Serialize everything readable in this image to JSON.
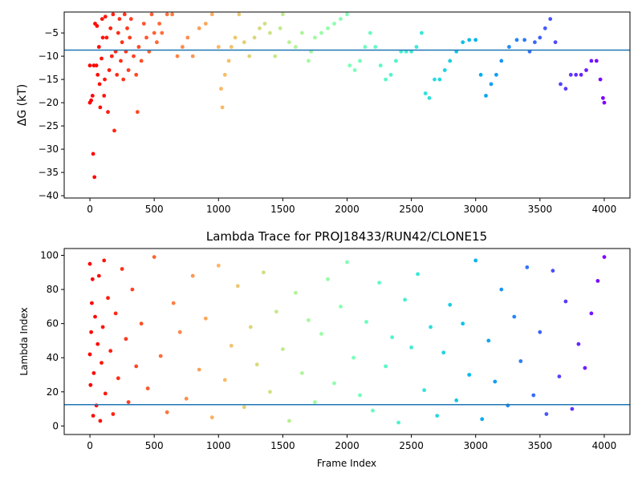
{
  "chart_data": [
    {
      "type": "scatter",
      "title": "",
      "xlabel": "",
      "ylabel": "ΔG (kT)",
      "xlim": [
        -200,
        4200
      ],
      "ylim": [
        -40.5,
        -0.5
      ],
      "xticks": [
        0,
        500,
        1000,
        1500,
        2000,
        2500,
        3000,
        3500,
        4000
      ],
      "yticks": [
        -40,
        -35,
        -30,
        -25,
        -20,
        -15,
        -10,
        -5
      ],
      "hline": -8.7,
      "hline_color": "#1f77b4",
      "colormap": "rainbow (red at frame 0 to violet at frame 4000)",
      "grid": false,
      "legend": "none",
      "frames": 4000,
      "points": [
        [
          0,
          -12
        ],
        [
          0,
          -20
        ],
        [
          10,
          -19.5
        ],
        [
          20,
          -18.5
        ],
        [
          25,
          -31
        ],
        [
          30,
          -12
        ],
        [
          35,
          -36
        ],
        [
          40,
          -3
        ],
        [
          50,
          -12
        ],
        [
          55,
          -3.5
        ],
        [
          60,
          -14
        ],
        [
          70,
          -8
        ],
        [
          75,
          -16
        ],
        [
          80,
          -21
        ],
        [
          90,
          -10.5
        ],
        [
          95,
          -2
        ],
        [
          100,
          -6
        ],
        [
          110,
          -18.5
        ],
        [
          115,
          -15
        ],
        [
          120,
          -1.5
        ],
        [
          130,
          -6
        ],
        [
          140,
          -22
        ],
        [
          150,
          -13
        ],
        [
          160,
          -4
        ],
        [
          170,
          -10
        ],
        [
          180,
          -1
        ],
        [
          190,
          -26
        ],
        [
          200,
          -9
        ],
        [
          210,
          -14
        ],
        [
          220,
          -5
        ],
        [
          230,
          -2
        ],
        [
          240,
          -11
        ],
        [
          250,
          -7
        ],
        [
          260,
          -15
        ],
        [
          270,
          -1
        ],
        [
          280,
          -9
        ],
        [
          290,
          -4
        ],
        [
          300,
          -13
        ],
        [
          310,
          -6
        ],
        [
          320,
          -2
        ],
        [
          340,
          -10
        ],
        [
          360,
          -14
        ],
        [
          370,
          -22
        ],
        [
          380,
          -8
        ],
        [
          400,
          -11
        ],
        [
          420,
          -3
        ],
        [
          440,
          -6
        ],
        [
          460,
          -9
        ],
        [
          480,
          -1
        ],
        [
          500,
          -5
        ],
        [
          520,
          -7
        ],
        [
          540,
          -3
        ],
        [
          560,
          -5
        ],
        [
          600,
          -1
        ],
        [
          640,
          -1
        ],
        [
          680,
          -10
        ],
        [
          720,
          -8
        ],
        [
          760,
          -6
        ],
        [
          800,
          -10
        ],
        [
          850,
          -4
        ],
        [
          900,
          -3
        ],
        [
          950,
          -1
        ],
        [
          1000,
          -8
        ],
        [
          1020,
          -17
        ],
        [
          1030,
          -21
        ],
        [
          1050,
          -14
        ],
        [
          1080,
          -11
        ],
        [
          1100,
          -8
        ],
        [
          1130,
          -6
        ],
        [
          1160,
          -1
        ],
        [
          1200,
          -7
        ],
        [
          1240,
          -10
        ],
        [
          1280,
          -6
        ],
        [
          1320,
          -4
        ],
        [
          1360,
          -3
        ],
        [
          1400,
          -5
        ],
        [
          1440,
          -10
        ],
        [
          1480,
          -4
        ],
        [
          1500,
          -1
        ],
        [
          1550,
          -7
        ],
        [
          1600,
          -8
        ],
        [
          1650,
          -5
        ],
        [
          1700,
          -11
        ],
        [
          1720,
          -9
        ],
        [
          1750,
          -6
        ],
        [
          1800,
          -5
        ],
        [
          1850,
          -4
        ],
        [
          1900,
          -3
        ],
        [
          1950,
          -2
        ],
        [
          2000,
          -1
        ],
        [
          2020,
          -12
        ],
        [
          2060,
          -13
        ],
        [
          2100,
          -11
        ],
        [
          2140,
          -8
        ],
        [
          2180,
          -5
        ],
        [
          2220,
          -8
        ],
        [
          2260,
          -12
        ],
        [
          2300,
          -15
        ],
        [
          2340,
          -14
        ],
        [
          2380,
          -11
        ],
        [
          2420,
          -9
        ],
        [
          2460,
          -9
        ],
        [
          2500,
          -9
        ],
        [
          2540,
          -8
        ],
        [
          2580,
          -5
        ],
        [
          2610,
          -18
        ],
        [
          2640,
          -19
        ],
        [
          2680,
          -15
        ],
        [
          2720,
          -15
        ],
        [
          2760,
          -13
        ],
        [
          2800,
          -11
        ],
        [
          2850,
          -9
        ],
        [
          2900,
          -7
        ],
        [
          2950,
          -6.5
        ],
        [
          3000,
          -6.5
        ],
        [
          3040,
          -14
        ],
        [
          3080,
          -18.5
        ],
        [
          3120,
          -16
        ],
        [
          3160,
          -14
        ],
        [
          3200,
          -11
        ],
        [
          3260,
          -8
        ],
        [
          3320,
          -6.5
        ],
        [
          3380,
          -6.5
        ],
        [
          3420,
          -9
        ],
        [
          3460,
          -7
        ],
        [
          3500,
          -6
        ],
        [
          3540,
          -4
        ],
        [
          3580,
          -2
        ],
        [
          3620,
          -7
        ],
        [
          3660,
          -16
        ],
        [
          3700,
          -17
        ],
        [
          3740,
          -14
        ],
        [
          3780,
          -14
        ],
        [
          3820,
          -14
        ],
        [
          3860,
          -13
        ],
        [
          3900,
          -11
        ],
        [
          3940,
          -11
        ],
        [
          3970,
          -15
        ],
        [
          3990,
          -19
        ],
        [
          4000,
          -20
        ]
      ]
    },
    {
      "type": "scatter",
      "title": "Lambda Trace for PROJ18433/RUN42/CLONE15",
      "xlabel": "Frame Index",
      "ylabel": "Lambda Index",
      "xlim": [
        -200,
        4200
      ],
      "ylim": [
        -5,
        104
      ],
      "xticks": [
        0,
        500,
        1000,
        1500,
        2000,
        2500,
        3000,
        3500,
        4000
      ],
      "yticks": [
        0,
        20,
        40,
        60,
        80,
        100
      ],
      "hline": 12.5,
      "hline_color": "#1f77b4",
      "colormap": "rainbow (red at frame 0 to violet at frame 4000)",
      "grid": false,
      "legend": "none",
      "frames": 4000,
      "points": [
        [
          0,
          95
        ],
        [
          0,
          42
        ],
        [
          5,
          24
        ],
        [
          10,
          55
        ],
        [
          15,
          72
        ],
        [
          20,
          86
        ],
        [
          25,
          6
        ],
        [
          30,
          31
        ],
        [
          40,
          64
        ],
        [
          50,
          12
        ],
        [
          60,
          48
        ],
        [
          70,
          88
        ],
        [
          80,
          3
        ],
        [
          90,
          37
        ],
        [
          100,
          58
        ],
        [
          110,
          97
        ],
        [
          120,
          19
        ],
        [
          140,
          75
        ],
        [
          160,
          44
        ],
        [
          180,
          7
        ],
        [
          200,
          66
        ],
        [
          220,
          28
        ],
        [
          250,
          92
        ],
        [
          280,
          51
        ],
        [
          300,
          14
        ],
        [
          330,
          80
        ],
        [
          360,
          35
        ],
        [
          400,
          60
        ],
        [
          450,
          22
        ],
        [
          500,
          99
        ],
        [
          550,
          41
        ],
        [
          600,
          8
        ],
        [
          650,
          72
        ],
        [
          700,
          55
        ],
        [
          750,
          16
        ],
        [
          800,
          88
        ],
        [
          850,
          33
        ],
        [
          900,
          63
        ],
        [
          950,
          5
        ],
        [
          1000,
          94
        ],
        [
          1050,
          27
        ],
        [
          1100,
          47
        ],
        [
          1150,
          82
        ],
        [
          1200,
          11
        ],
        [
          1250,
          58
        ],
        [
          1300,
          36
        ],
        [
          1350,
          90
        ],
        [
          1400,
          20
        ],
        [
          1450,
          67
        ],
        [
          1500,
          45
        ],
        [
          1550,
          3
        ],
        [
          1600,
          78
        ],
        [
          1650,
          31
        ],
        [
          1700,
          62
        ],
        [
          1750,
          14
        ],
        [
          1800,
          54
        ],
        [
          1850,
          86
        ],
        [
          1900,
          25
        ],
        [
          1950,
          70
        ],
        [
          2000,
          96
        ],
        [
          2050,
          40
        ],
        [
          2100,
          18
        ],
        [
          2150,
          61
        ],
        [
          2200,
          9
        ],
        [
          2250,
          84
        ],
        [
          2300,
          35
        ],
        [
          2350,
          52
        ],
        [
          2400,
          2
        ],
        [
          2450,
          74
        ],
        [
          2500,
          46
        ],
        [
          2550,
          89
        ],
        [
          2600,
          21
        ],
        [
          2650,
          58
        ],
        [
          2700,
          6
        ],
        [
          2750,
          43
        ],
        [
          2800,
          71
        ],
        [
          2850,
          15
        ],
        [
          2900,
          60
        ],
        [
          2950,
          30
        ],
        [
          3000,
          97
        ],
        [
          3050,
          4
        ],
        [
          3100,
          50
        ],
        [
          3150,
          26
        ],
        [
          3200,
          80
        ],
        [
          3250,
          12
        ],
        [
          3300,
          64
        ],
        [
          3350,
          38
        ],
        [
          3400,
          93
        ],
        [
          3450,
          18
        ],
        [
          3500,
          55
        ],
        [
          3550,
          7
        ],
        [
          3600,
          91
        ],
        [
          3650,
          29
        ],
        [
          3700,
          73
        ],
        [
          3750,
          10
        ],
        [
          3800,
          48
        ],
        [
          3850,
          34
        ],
        [
          3900,
          66
        ],
        [
          3950,
          85
        ],
        [
          4000,
          99
        ]
      ]
    }
  ]
}
